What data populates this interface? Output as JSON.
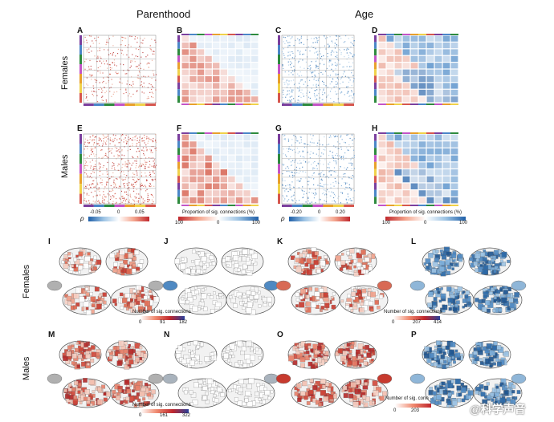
{
  "headers": {
    "left": "Parenthood",
    "right": "Age"
  },
  "row_labels": {
    "females": "Females",
    "males": "Males"
  },
  "panel_letters": {
    "A": "A",
    "B": "B",
    "C": "C",
    "D": "D",
    "E": "E",
    "F": "F",
    "G": "G",
    "H": "H",
    "I": "I",
    "J": "J",
    "K": "K",
    "L": "L",
    "M": "M",
    "N": "N",
    "O": "O",
    "P": "P"
  },
  "colorbars": {
    "rho_parent": {
      "symbol": "ρ",
      "ticks": [
        "-0.05",
        "0",
        "0.05"
      ]
    },
    "prop_parent": {
      "label": "Proportion of sig. connections (%)",
      "ticks": [
        "100",
        "0",
        "100"
      ]
    },
    "rho_age": {
      "symbol": "ρ",
      "ticks": [
        "-0.20",
        "0",
        "0.20"
      ]
    },
    "prop_age": {
      "label": "Proportion of sig. connections (%)",
      "ticks": [
        "100",
        "0",
        "100"
      ]
    },
    "count_I": {
      "label": "Number of sig. connections",
      "ticks": [
        "0",
        "91",
        "182"
      ]
    },
    "count_K": {
      "label": "Number of sig. connections",
      "ticks": [
        "0",
        "207",
        "414"
      ]
    },
    "count_M": {
      "label": "Number of sig. connections",
      "ticks": [
        "0",
        "161",
        "322"
      ]
    },
    "count_O": {
      "label": "Number of sig. conn",
      "ticks": [
        "0",
        "203"
      ]
    }
  },
  "colors": {
    "red": "#c0272d",
    "blue": "#1f5fa8",
    "grid": "#bbbbbb",
    "network_colors": [
      "#7b3f9e",
      "#4a86c8",
      "#2e8b3e",
      "#c454c7",
      "#e8a02c",
      "#f0d24a",
      "#d6564e"
    ]
  },
  "watermark": "@科学声音"
}
